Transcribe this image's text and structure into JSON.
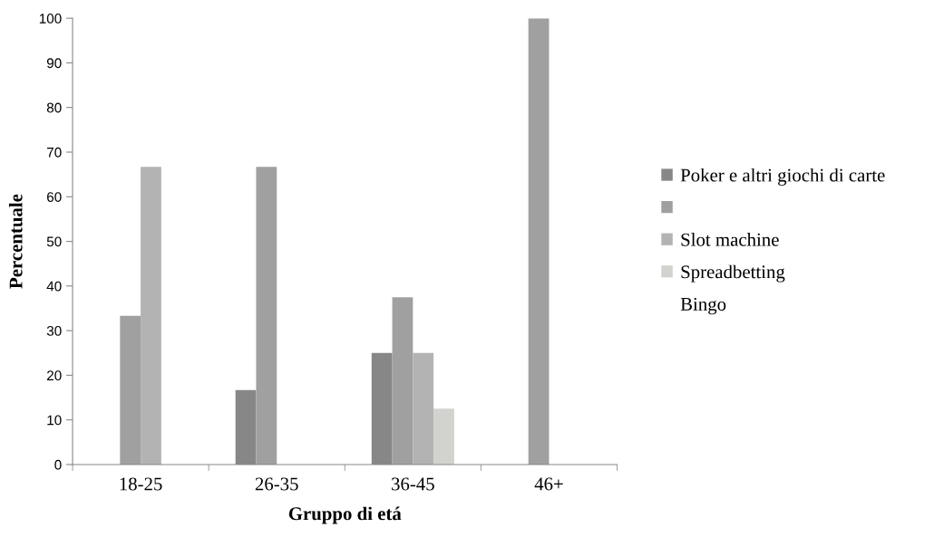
{
  "chart_data": {
    "type": "bar",
    "xlabel": "Gruppo di etá",
    "ylabel": "Percentuale",
    "categories": [
      "18-25",
      "26-35",
      "36-45",
      "46+"
    ],
    "series": [
      {
        "name": "Poker e altri giochi di carte",
        "color": "#878787",
        "values": [
          null,
          16.7,
          25,
          null
        ]
      },
      {
        "color": "#a0a0a0",
        "values": [
          33.3,
          66.7,
          37.5,
          100
        ]
      },
      {
        "name": "Slot machine",
        "color": "#b3b3b3",
        "values": [
          66.7,
          null,
          25,
          null
        ]
      },
      {
        "name": "Spreadbetting",
        "color": "#d2d3ce",
        "values": [
          null,
          null,
          12.5,
          null
        ]
      },
      {
        "name": "Bingo",
        "values": [
          null,
          null,
          null,
          null
        ]
      }
    ],
    "ylim": [
      0,
      100
    ],
    "yticks": [
      0,
      10,
      20,
      30,
      40,
      50,
      60,
      70,
      80,
      90,
      100
    ],
    "grid": false,
    "legend": "right"
  }
}
